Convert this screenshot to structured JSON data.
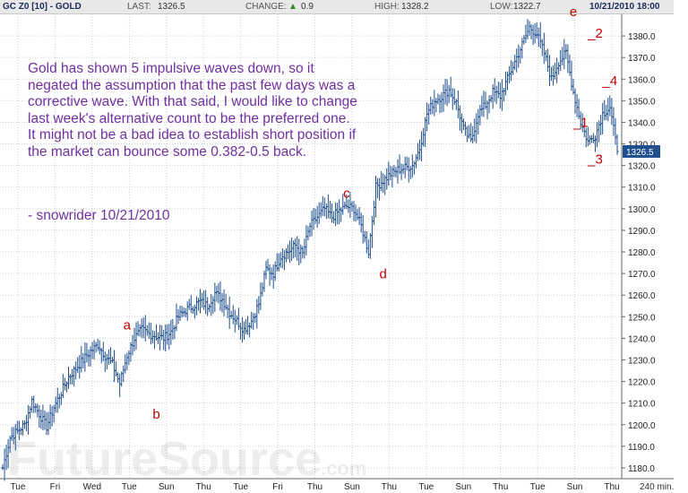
{
  "header": {
    "symbol": "GC Z0 [10] - GOLD",
    "last_label": "LAST:",
    "last_value": "1326.5",
    "change_label": "CHANGE:",
    "change_arrow": "▲",
    "change_value": "0.9",
    "high_label": "HIGH:",
    "high_value": "1328.2",
    "low_label": "LOW:",
    "low_value": "1322.7",
    "datetime": "10/21/2010 18:00"
  },
  "note": {
    "text": "Gold has shown 5 impulsive waves down, so it negated the assumption that the past few days was a corrective wave.  With that said, I would like to change last week's alternative count to be the preferred one. It might not be a bad idea to establish short position if the market can bounce some 0.382-0.5 back.",
    "signature": "- snowrider  10/21/2010"
  },
  "watermark": {
    "main": "FutureSource",
    "suffix": ".com"
  },
  "chart_data": {
    "type": "bar",
    "title": "GC Z0 [10] - GOLD",
    "xlabel": "",
    "ylabel": "",
    "interval_label": "240 min.",
    "ylim": [
      1175,
      1390
    ],
    "yticks": [
      1180,
      1190,
      1200,
      1210,
      1220,
      1230,
      1240,
      1250,
      1260,
      1270,
      1280,
      1290,
      1300,
      1310,
      1320,
      1330,
      1340,
      1350,
      1360,
      1370,
      1380
    ],
    "x_tick_labels": [
      "Tue",
      "Fri",
      "Wed",
      "Tue",
      "Sun",
      "Thu",
      "Tue",
      "Fri",
      "Thu",
      "Sun",
      "Thu",
      "Tue",
      "Sun",
      "Thu",
      "Tue",
      "Sun",
      "Thu"
    ],
    "last_price": 1326.5,
    "grid": true,
    "legend": "none",
    "colors": {
      "bars": "#1f4f8f",
      "grid": "#c8d0da",
      "last_box": "#1f4f8f",
      "wave_labels": "#c00000",
      "note_text": "#7030a0"
    },
    "closes_approx": [
      1180,
      1194,
      1197,
      1200,
      1211,
      1205,
      1199,
      1208,
      1215,
      1222,
      1226,
      1230,
      1234,
      1237,
      1232,
      1228,
      1219,
      1232,
      1240,
      1244,
      1242,
      1241,
      1240,
      1243,
      1250,
      1253,
      1255,
      1257,
      1255,
      1261,
      1258,
      1252,
      1248,
      1244,
      1248,
      1256,
      1272,
      1270,
      1278,
      1280,
      1283,
      1279,
      1292,
      1296,
      1300,
      1296,
      1299,
      1301,
      1300,
      1292,
      1280,
      1310,
      1313,
      1316,
      1318,
      1319,
      1320,
      1328,
      1344,
      1350,
      1352,
      1355,
      1349,
      1337,
      1331,
      1344,
      1348,
      1354,
      1352,
      1360,
      1368,
      1376,
      1384,
      1381,
      1372,
      1360,
      1368,
      1372,
      1354,
      1340,
      1331,
      1334,
      1344,
      1347,
      1326.5
    ],
    "wave_labels": [
      {
        "label": "a",
        "x_index": 17,
        "price": 1240
      },
      {
        "label": "b",
        "x_index": 21,
        "price": 1212
      },
      {
        "label": "c",
        "x_index": 47,
        "price": 1301
      },
      {
        "label": "d",
        "x_index": 52,
        "price": 1277
      },
      {
        "label": "e",
        "x_index": 78,
        "price": 1385
      },
      {
        "label": "_2",
        "x_index": 81,
        "price": 1375
      },
      {
        "label": "_1",
        "x_index": 79,
        "price": 1347
      },
      {
        "label": "_4",
        "x_index": 83,
        "price": 1353
      },
      {
        "label": "_3",
        "x_index": 81,
        "price": 1330
      }
    ]
  }
}
